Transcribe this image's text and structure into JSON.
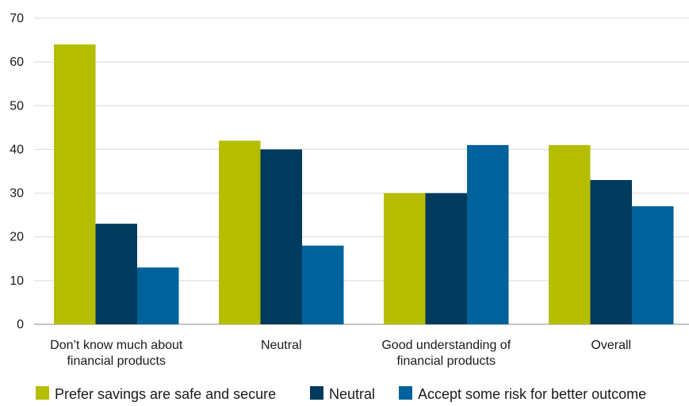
{
  "chart_data": {
    "type": "bar",
    "categories": [
      [
        "Don’t know much about",
        "financial products"
      ],
      [
        "Neutral"
      ],
      [
        "Good understanding of",
        "financial products"
      ],
      [
        "Overall"
      ]
    ],
    "series": [
      {
        "name": "Prefer savings are safe and secure",
        "color": "#b5bd00",
        "values": [
          64,
          42,
          30,
          41
        ]
      },
      {
        "name": "Neutral",
        "color": "#003a5d",
        "values": [
          23,
          40,
          30,
          33
        ]
      },
      {
        "name": "Accept some risk for better outcome",
        "color": "#00629b",
        "values": [
          13,
          18,
          41,
          27
        ]
      }
    ],
    "ylim": [
      0,
      70
    ],
    "yticks": [
      0,
      10,
      20,
      30,
      40,
      50,
      60,
      70
    ],
    "grid": true,
    "grid_color": "#d9d9d9",
    "legend_position": "bottom"
  }
}
